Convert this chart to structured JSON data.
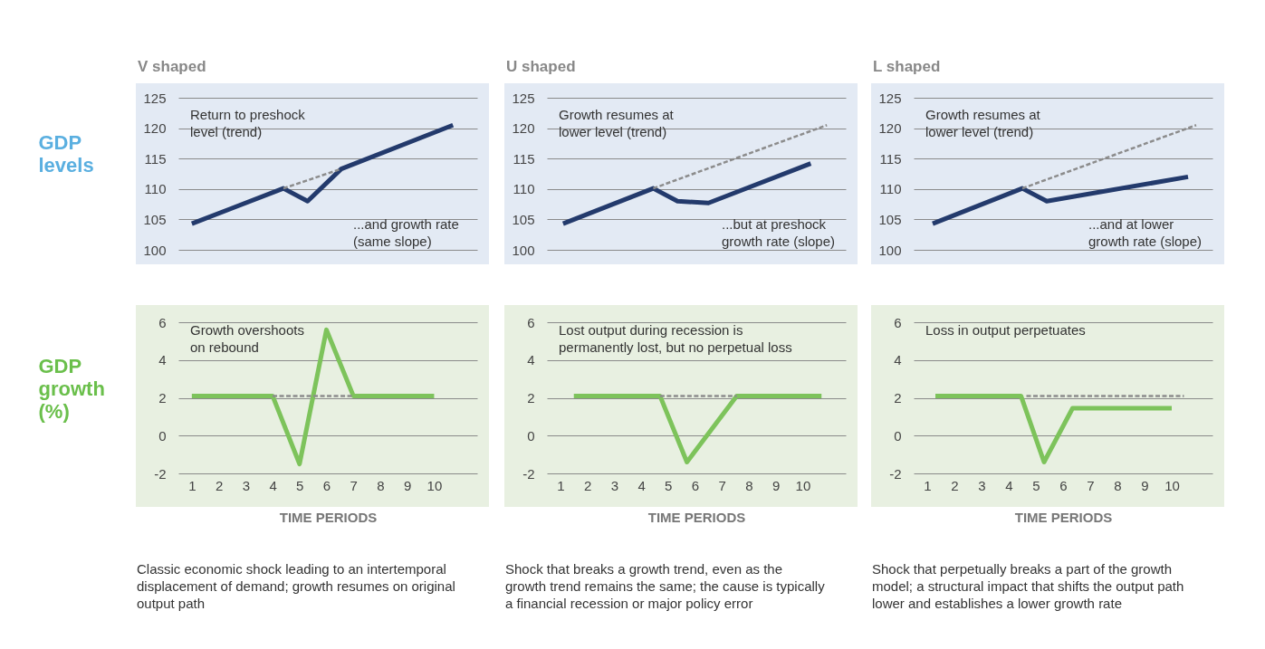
{
  "chart_data": [
    {
      "type": "line",
      "title": "V shaped",
      "ylabel": "GDP levels",
      "xlim": [
        0.5,
        11.6
      ],
      "ylim": [
        100,
        125
      ],
      "yticks": [
        100,
        105,
        110,
        115,
        120,
        125
      ],
      "tick_labels": "y",
      "grid": "y",
      "annotations": [
        "Return to preshock\nlevel (trend)",
        "...and growth rate\n(same slope)"
      ],
      "series": [
        {
          "color": "#233a6c",
          "x": [
            1,
            4.4,
            5.3,
            6.55,
            10.7
          ],
          "values": [
            104.3,
            110.1,
            108,
            113.3,
            120.5
          ]
        },
        {
          "color": "#8c8c8c",
          "line_style": "dashed",
          "x": [
            4.4,
            6.55
          ],
          "values": [
            110.1,
            113.3
          ]
        }
      ]
    },
    {
      "type": "line",
      "title": "U shaped",
      "xlim": [
        0.5,
        11.6
      ],
      "ylim": [
        100,
        125
      ],
      "yticks": [
        100,
        105,
        110,
        115,
        120,
        125
      ],
      "tick_labels": "y",
      "grid": "y",
      "annotations": [
        "Growth resumes at\nlower level (trend)",
        "...but at preshock\ngrowth rate (slope)"
      ],
      "series": [
        {
          "color": "#233a6c",
          "x": [
            1.1,
            4.45,
            5.35,
            6.5,
            10.3
          ],
          "values": [
            104.3,
            110.1,
            108,
            107.7,
            114.2
          ]
        },
        {
          "color": "#8c8c8c",
          "line_style": "dashed",
          "x": [
            4.45,
            10.9
          ],
          "values": [
            110.1,
            120.5
          ]
        }
      ]
    },
    {
      "type": "line",
      "title": "L shaped",
      "xlim": [
        0.5,
        11.5
      ],
      "ylim": [
        100,
        125
      ],
      "yticks": [
        100,
        105,
        110,
        115,
        120,
        125
      ],
      "tick_labels": "y",
      "grid": "y",
      "annotations": [
        "Growth resumes at\nlower level (trend)",
        "...and at lower\ngrowth rate (slope)"
      ],
      "series": [
        {
          "color": "#233a6c",
          "x": [
            1.2,
            4.5,
            5.4,
            10.6
          ],
          "values": [
            104.3,
            110.1,
            108,
            112
          ]
        },
        {
          "color": "#8c8c8c",
          "line_style": "dashed",
          "x": [
            4.5,
            10.9
          ],
          "values": [
            110.1,
            120.5
          ]
        }
      ]
    },
    {
      "type": "line",
      "ylabel": "GDP growth (%)",
      "xlabel": "TIME PERIODS",
      "xlim": [
        0.5,
        11.6
      ],
      "xticks": [
        1,
        2,
        3,
        4,
        5,
        6,
        7,
        8,
        9,
        10
      ],
      "ylim": [
        -2,
        6
      ],
      "yticks": [
        -2,
        0,
        2,
        4,
        6
      ],
      "grid": "y",
      "annotations": [
        "Growth overshoots\non rebound",
        "Classic economic shock leading to an intertemporal\ndisplacement of demand; growth resumes on original\noutput path"
      ],
      "series": [
        {
          "color": "#7dc35b",
          "x": [
            1,
            4,
            5,
            6,
            7,
            10
          ],
          "values": [
            2.1,
            2.1,
            -1.5,
            5.6,
            2.1,
            2.1
          ]
        },
        {
          "color": "#8c8c8c",
          "line_style": "dashed",
          "x": [
            4,
            7
          ],
          "values": [
            2.1,
            2.1
          ]
        }
      ]
    },
    {
      "type": "line",
      "xlabel": "TIME PERIODS",
      "xlim": [
        0.5,
        11.6
      ],
      "xticks": [
        1,
        2,
        3,
        4,
        5,
        6,
        7,
        8,
        9,
        10
      ],
      "ylim": [
        -2,
        6
      ],
      "yticks": [
        -2,
        0,
        2,
        4,
        6
      ],
      "grid": "y",
      "annotations": [
        "Lost output during recession is\npermanently lost, but no perpetual loss",
        "Shock that breaks a growth trend, even as the\ngrowth trend remains the same; the cause is typically\na financial recession or major policy error"
      ],
      "series": [
        {
          "color": "#7dc35b",
          "x": [
            1.5,
            4.7,
            5.7,
            7.55,
            10.7
          ],
          "values": [
            2.1,
            2.1,
            -1.4,
            2.1,
            2.1
          ]
        },
        {
          "color": "#8c8c8c",
          "line_style": "dashed",
          "x": [
            4.7,
            7.55
          ],
          "values": [
            2.1,
            2.1
          ]
        }
      ]
    },
    {
      "type": "line",
      "xlabel": "TIME PERIODS",
      "xlim": [
        0.5,
        11.5
      ],
      "xticks": [
        1,
        2,
        3,
        4,
        5,
        6,
        7,
        8,
        9,
        10
      ],
      "ylim": [
        -2,
        6
      ],
      "yticks": [
        -2,
        0,
        2,
        4,
        6
      ],
      "grid": "y",
      "annotations": [
        "Loss in output perpetuates",
        "Shock that perpetually breaks a part of the growth\nmodel; a structural impact that shifts the output path\nlower and establishes a lower growth rate"
      ],
      "series": [
        {
          "color": "#7dc35b",
          "x": [
            1.3,
            4.45,
            5.3,
            6.35,
            10
          ],
          "values": [
            2.1,
            2.1,
            -1.4,
            1.45,
            1.45
          ]
        },
        {
          "color": "#8c8c8c",
          "line_style": "dashed",
          "x": [
            4.65,
            10.45
          ],
          "values": [
            2.1,
            2.1
          ]
        }
      ]
    }
  ]
}
